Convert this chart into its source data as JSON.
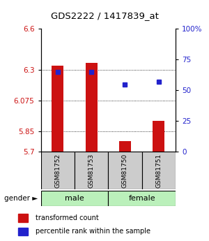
{
  "title": "GDS2222 / 1417839_at",
  "samples": [
    "GSM81752",
    "GSM81753",
    "GSM81750",
    "GSM81751"
  ],
  "bar_bottom": 5.7,
  "bar_values": [
    6.33,
    6.35,
    5.78,
    5.925
  ],
  "percentile_values": [
    6.285,
    6.285,
    6.195,
    6.215
  ],
  "ylim": [
    5.7,
    6.6
  ],
  "yticks_left": [
    5.7,
    5.85,
    6.075,
    6.3,
    6.6
  ],
  "yticks_left_labels": [
    "5.7",
    "5.85",
    "6.075",
    "6.3",
    "6.6"
  ],
  "yticks_right": [
    0,
    25,
    50,
    75,
    100
  ],
  "yticks_right_labels": [
    "0",
    "25",
    "50",
    "75",
    "100%"
  ],
  "grid_lines": [
    5.85,
    6.075,
    6.3
  ],
  "bar_color": "#cc1111",
  "percentile_color": "#2222cc",
  "bar_width": 0.35,
  "sample_box_color": "#cccccc",
  "male_color": "#bbf0bb",
  "female_color": "#bbf0bb",
  "label_color_left": "#cc1111",
  "label_color_right": "#2222cc",
  "legend_red": "transformed count",
  "legend_blue": "percentile rank within the sample",
  "gender_arrow": "gender ►"
}
